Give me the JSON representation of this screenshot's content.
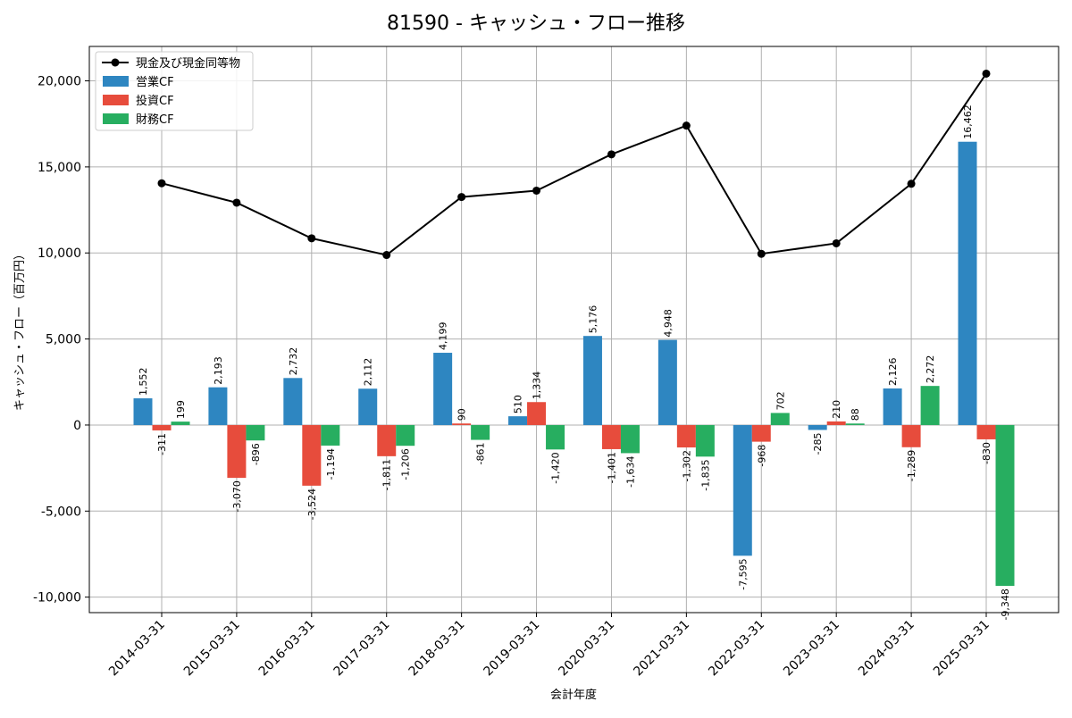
{
  "chart_data": {
    "type": "bar",
    "title": "81590 - キャッシュ・フロー推移",
    "xlabel": "会計年度",
    "ylabel": "キャッシュ・フロー（百万円）",
    "ylim": [
      -10900,
      22000
    ],
    "yticks": [
      -10000,
      -5000,
      0,
      5000,
      10000,
      15000,
      20000
    ],
    "ytick_labels": [
      "-10,000",
      "-5,000",
      "0",
      "5,000",
      "10,000",
      "15,000",
      "20,000"
    ],
    "grid": true,
    "legend_position": "top-left",
    "categories": [
      "2014-03-31",
      "2015-03-31",
      "2016-03-31",
      "2017-03-31",
      "2018-03-31",
      "2019-03-31",
      "2020-03-31",
      "2021-03-31",
      "2022-03-31",
      "2023-03-31",
      "2024-03-31",
      "2025-03-31"
    ],
    "series": [
      {
        "name": "営業CF",
        "kind": "bar",
        "color": "#2e86c1",
        "values": [
          1552,
          2193,
          2732,
          2112,
          4199,
          510,
          5176,
          4948,
          -7595,
          -285,
          2126,
          16462
        ],
        "labels": [
          "1,552",
          "2,193",
          "2,732",
          "2,112",
          "4,199",
          "510",
          "5,176",
          "4,948",
          "-7,595",
          "-285",
          "2,126",
          "16,462"
        ]
      },
      {
        "name": "投資CF",
        "kind": "bar",
        "color": "#e74c3c",
        "values": [
          -311,
          -3070,
          -3524,
          -1811,
          90,
          1334,
          -1401,
          -1302,
          -968,
          210,
          -1289,
          -830
        ],
        "labels": [
          "-311",
          "-3,070",
          "-3,524",
          "-1,811",
          "90",
          "1,334",
          "-1,401",
          "-1,302",
          "-968",
          "210",
          "-1,289",
          "-830"
        ]
      },
      {
        "name": "財務CF",
        "kind": "bar",
        "color": "#27ae60",
        "values": [
          199,
          -896,
          -1194,
          -1206,
          -861,
          -1420,
          -1634,
          -1835,
          702,
          88,
          2272,
          -9348
        ],
        "labels": [
          "199",
          "-896",
          "-1,194",
          "-1,206",
          "-861",
          "-1,420",
          "-1,634",
          "-1,835",
          "702",
          "88",
          "2,272",
          "-9,348"
        ]
      },
      {
        "name": "現金及び現金同等物",
        "kind": "line",
        "color": "#000000",
        "values": [
          14050,
          12920,
          10850,
          9880,
          13250,
          13620,
          15730,
          17400,
          9950,
          10560,
          14020,
          20420
        ]
      }
    ],
    "legend_order": [
      "現金及び現金同等物",
      "営業CF",
      "投資CF",
      "財務CF"
    ]
  }
}
